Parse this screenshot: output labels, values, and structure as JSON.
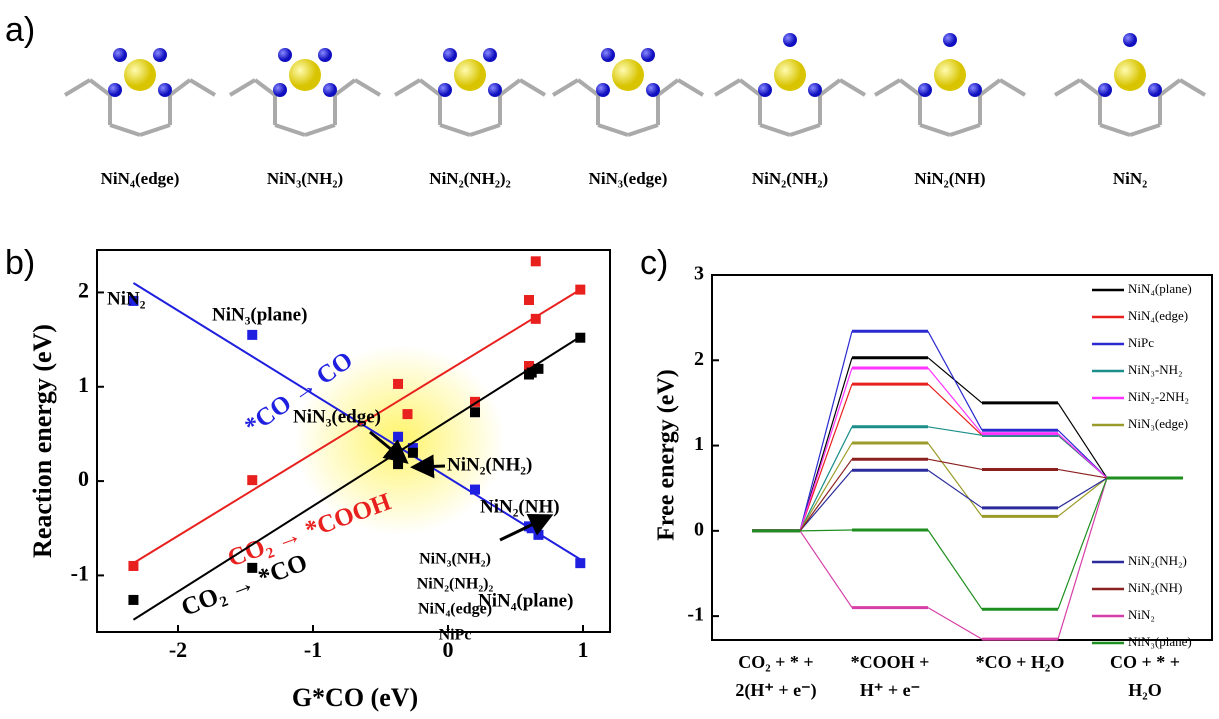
{
  "panels": [
    "a)",
    "b)",
    "c)"
  ],
  "structures": [
    "NiN₄(edge)",
    "NiN₃(NH₂)",
    "NiN₂(NH₂)₂",
    "NiN₃(edge)",
    "NiN₂(NH₂)",
    "NiN₂(NH)",
    "NiN₂"
  ],
  "chart_data": [
    {
      "type": "scatter",
      "xlabel": "G*CO (eV)",
      "ylabel": "Reaction energy (eV)",
      "xlim": [
        -2.6,
        1.2
      ],
      "ylim": [
        -1.6,
        2.45
      ],
      "xticks": [
        -2,
        -1,
        0,
        1
      ],
      "yticks": [
        -1,
        0,
        1,
        2
      ],
      "annotations": [
        "NiN₂",
        "NiN₃(plane)",
        "NiN₃(edge)",
        "NiN₂(NH₂)",
        "NiN₂(NH)",
        "NiN₃(NH₂)",
        "NiN₂(NH₂)₂",
        "NiN₄(edge)",
        "NiPc",
        "NiN₄(plane)"
      ],
      "series": [
        {
          "name": "*CO → CO",
          "color": "#1f1fe0",
          "x": [
            -2.33,
            -1.45,
            -0.37,
            -0.26,
            0.2,
            0.6,
            0.62,
            0.67,
            0.98
          ],
          "values": [
            1.91,
            1.55,
            0.47,
            0.35,
            -0.09,
            -0.48,
            -0.5,
            -0.57,
            -0.87
          ],
          "trend_x": [
            -2.33,
            0.98
          ],
          "trend_values": [
            2.1,
            -0.83
          ]
        },
        {
          "name": "CO₂ → *COOH",
          "color": "#e8201e",
          "x": [
            -2.33,
            -1.45,
            -0.37,
            -0.3,
            0.2,
            0.6,
            0.6,
            0.65,
            0.65,
            0.98
          ],
          "values": [
            -0.9,
            0.01,
            1.03,
            0.71,
            0.84,
            1.92,
            1.22,
            2.33,
            1.72,
            2.03
          ],
          "trend_x": [
            -2.33,
            0.98
          ],
          "trend_values": [
            -0.87,
            2.03
          ]
        },
        {
          "name": "CO₂ → *CO",
          "color": "#000000",
          "x": [
            -2.33,
            -1.45,
            -0.37,
            -0.26,
            0.2,
            0.6,
            0.62,
            0.67,
            0.98
          ],
          "values": [
            -1.26,
            -0.92,
            0.18,
            0.3,
            0.73,
            1.13,
            1.15,
            1.19,
            1.52
          ],
          "trend_x": [
            -2.33,
            0.98
          ],
          "trend_values": [
            -1.47,
            1.53
          ]
        }
      ]
    },
    {
      "type": "step",
      "ylabel": "Free energy (eV)",
      "ylim": [
        -1.28,
        3.0
      ],
      "yticks": [
        -1,
        0,
        1,
        2,
        3
      ],
      "categories": [
        [
          "CO₂ + * +",
          "2(H⁺ + e⁻)"
        ],
        [
          "*COOH +",
          "H⁺ + e⁻"
        ],
        [
          "*CO + H₂O"
        ],
        [
          "CO + * +",
          "H₂O"
        ]
      ],
      "series": [
        {
          "name": "NiN₄(plane)",
          "color": "#000000",
          "values": [
            0,
            2.03,
            1.5,
            0.62
          ]
        },
        {
          "name": "NiN₄(edge)",
          "color": "#e8201e",
          "values": [
            0,
            1.72,
            1.12,
            0.62
          ]
        },
        {
          "name": "NiPc",
          "color": "#2a2ad0",
          "values": [
            0,
            2.34,
            1.18,
            0.62
          ]
        },
        {
          "name": "NiN₃-NH₂",
          "color": "#1a8f8a",
          "values": [
            0,
            1.22,
            1.12,
            0.62
          ]
        },
        {
          "name": "NiN₂-2NH₂",
          "color": "#ff33ff",
          "values": [
            0,
            1.91,
            1.14,
            0.62
          ]
        },
        {
          "name": "NiN₃(edge)",
          "color": "#9b9b2a",
          "values": [
            0,
            1.03,
            0.17,
            0.62
          ]
        },
        {
          "name": "NiN₂(NH₂)",
          "color": "#2b2b9b",
          "values": [
            0,
            0.71,
            0.27,
            0.62
          ]
        },
        {
          "name": "NiN₂(NH)",
          "color": "#8b2020",
          "values": [
            0,
            0.84,
            0.72,
            0.62
          ]
        },
        {
          "name": "NiN₂",
          "color": "#d63fa8",
          "values": [
            0,
            -0.9,
            -1.27,
            0.62
          ]
        },
        {
          "name": "NiN₃(plane)",
          "color": "#1e8f1e",
          "values": [
            0,
            0.01,
            -0.92,
            0.62
          ]
        }
      ]
    }
  ]
}
